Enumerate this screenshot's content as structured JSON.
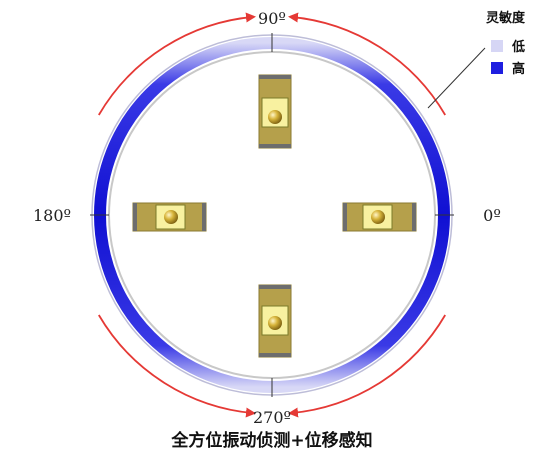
{
  "angles": {
    "deg_90": "90º",
    "deg_180": "180º",
    "deg_0": "0º",
    "deg_270": "270º"
  },
  "legend": {
    "title": "灵敏度",
    "items": [
      {
        "label": "低",
        "color": "#d6d6f5"
      },
      {
        "label": "高",
        "color": "#1e1ee0"
      }
    ]
  },
  "caption": "全方位振动侦测+位移感知",
  "colors": {
    "ring_dark": "#1414d6",
    "ring_light": "#e4e4f8",
    "arrow": "#e53935",
    "sensor_body": "#b5a04b",
    "sensor_window": "#f5ef7a",
    "sensor_ball": "#c8a92a"
  }
}
